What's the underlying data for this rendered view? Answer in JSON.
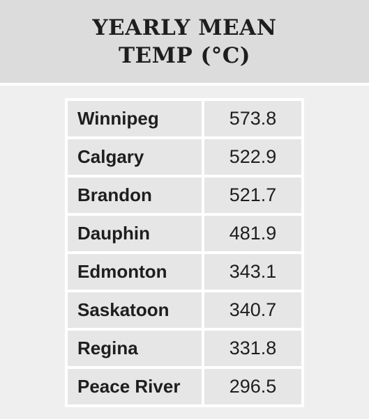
{
  "header": {
    "title": "YEARLY MEAN TEMP (°C)"
  },
  "table": {
    "rows": [
      [
        "Winnipeg",
        573.8
      ],
      [
        "Calgary",
        522.9
      ],
      [
        "Brandon",
        521.7
      ],
      [
        "Dauphin",
        481.9
      ],
      [
        "Edmonton",
        343.1
      ],
      [
        "Saskatoon",
        340.7
      ],
      [
        "Regina",
        331.8
      ],
      [
        "Peace River",
        296.5
      ]
    ]
  }
}
